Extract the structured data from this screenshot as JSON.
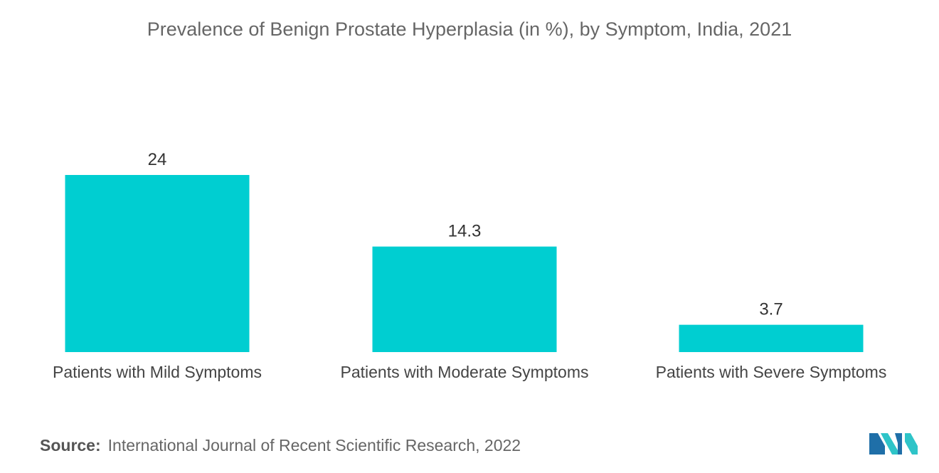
{
  "colors": {
    "bar": "#00CED1",
    "logo_dark": "#1F6FA8",
    "logo_light": "#2EC4C8"
  },
  "chart_data": {
    "type": "bar",
    "title": "Prevalence of Benign Prostate Hyperplasia (in %), by Symptom, India, 2021",
    "xlabel": "",
    "ylabel": "",
    "categories": [
      "Patients with Mild Symptoms",
      "Patients with Moderate Symptoms",
      "Patients with Severe Symptoms"
    ],
    "values": [
      24,
      14.3,
      3.7
    ],
    "value_labels": [
      "24",
      "14.3",
      "3.7"
    ],
    "ylim": [
      0,
      24
    ],
    "grid": false,
    "legend": "none"
  },
  "source": {
    "label": "Source:",
    "text": "International Journal of Recent Scientific Research, 2022"
  },
  "logo": {
    "icon": "mordor-intelligence-logo-icon"
  }
}
